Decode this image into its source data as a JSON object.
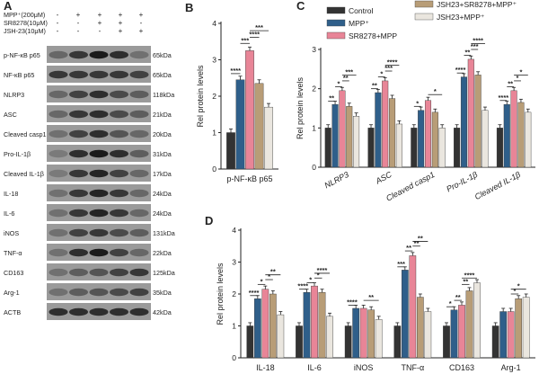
{
  "panel_labels": [
    "A",
    "B",
    "C",
    "D"
  ],
  "colors": {
    "Control": "#333333",
    "MPP+": "#2f5f8a",
    "SR8278+MPP": "#e88597",
    "JSH23+SR8278+MPP+": "#b89d77",
    "JSH23+MPP+": "#eae6df"
  },
  "blot": {
    "treatments": [
      {
        "label": "MPP⁺(200μM)",
        "signs": [
          "-",
          "+",
          "+",
          "+",
          "+"
        ]
      },
      {
        "label": "SR8278(10μM)",
        "signs": [
          "-",
          "-",
          "+",
          "+",
          "-"
        ]
      },
      {
        "label": "JSH-23(10μM)",
        "signs": [
          "-",
          "-",
          "-",
          "+",
          "+"
        ]
      }
    ],
    "bands": [
      {
        "name": "p-NF-κB p65",
        "kda": "65kDa"
      },
      {
        "name": "NF-κB p65",
        "kda": "65kDa"
      },
      {
        "name": "NLRP3",
        "kda": "118kDa"
      },
      {
        "name": "ASC",
        "kda": "21kDa"
      },
      {
        "name": "Cleaved casp1",
        "kda": "20kDa"
      },
      {
        "name": "Pro-IL-1β",
        "kda": "31kDa"
      },
      {
        "name": "Cleaved IL-1β",
        "kda": "17kDa"
      },
      {
        "name": "IL-18",
        "kda": "24kDa"
      },
      {
        "name": "IL-6",
        "kda": "24kDa"
      },
      {
        "name": "iNOS",
        "kda": "131kDa"
      },
      {
        "name": "TNF-α",
        "kda": "22kDa"
      },
      {
        "name": "CD163",
        "kda": "125kDa"
      },
      {
        "name": "Arg-1",
        "kda": "35kDa"
      },
      {
        "name": "ACTB",
        "kda": "42kDa"
      }
    ],
    "intensity": [
      [
        0.55,
        0.8,
        0.95,
        0.85,
        0.5
      ],
      [
        0.8,
        0.8,
        0.8,
        0.8,
        0.75
      ],
      [
        0.55,
        0.75,
        0.85,
        0.7,
        0.6
      ],
      [
        0.55,
        0.8,
        0.85,
        0.7,
        0.6
      ],
      [
        0.5,
        0.75,
        0.85,
        0.65,
        0.55
      ],
      [
        0.45,
        0.85,
        0.95,
        0.85,
        0.6
      ],
      [
        0.45,
        0.8,
        0.9,
        0.75,
        0.55
      ],
      [
        0.5,
        0.8,
        0.9,
        0.8,
        0.55
      ],
      [
        0.5,
        0.8,
        0.9,
        0.8,
        0.55
      ],
      [
        0.5,
        0.75,
        0.8,
        0.7,
        0.6
      ],
      [
        0.5,
        0.85,
        0.95,
        0.75,
        0.55
      ],
      [
        0.5,
        0.6,
        0.65,
        0.75,
        0.8
      ],
      [
        0.5,
        0.6,
        0.65,
        0.7,
        0.75
      ],
      [
        0.85,
        0.85,
        0.85,
        0.85,
        0.85
      ]
    ]
  },
  "legend": {
    "items": [
      {
        "label": "Control",
        "key": "Control"
      },
      {
        "label": "MPP⁺",
        "key": "MPP+"
      },
      {
        "label": "SR8278+MPP",
        "key": "SR8278+MPP"
      },
      {
        "label": "JSH23+SR8278+MPP⁺",
        "key": "JSH23+SR8278+MPP+"
      },
      {
        "label": "JSH23+MPP⁺",
        "key": "JSH23+MPP+"
      }
    ]
  },
  "chart_data": [
    {
      "id": "B",
      "type": "bar",
      "ylabel": "Rel protein levels",
      "ylim": [
        0,
        4
      ],
      "yticks": [
        0,
        1,
        2,
        3,
        4
      ],
      "categories": [
        "p-NF-κB p65"
      ],
      "series": [
        {
          "name": "Control",
          "values": [
            1.0
          ]
        },
        {
          "name": "MPP+",
          "values": [
            2.45
          ]
        },
        {
          "name": "SR8278+MPP",
          "values": [
            3.25
          ]
        },
        {
          "name": "JSH23+SR8278+MPP+",
          "values": [
            2.35
          ]
        },
        {
          "name": "JSH23+MPP+",
          "values": [
            1.7
          ]
        }
      ],
      "annotations": [
        {
          "text": "****",
          "from": 0,
          "to": 1,
          "level": 2.62
        },
        {
          "text": "***",
          "from": 1,
          "to": 2,
          "level": 3.45
        },
        {
          "text": "****",
          "from": 2,
          "to": 3,
          "level": 3.62
        },
        {
          "text": "***",
          "from": 2,
          "to": 4,
          "level": 3.8
        }
      ]
    },
    {
      "id": "C",
      "type": "bar",
      "ylabel": "Rel protein levels",
      "ylim": [
        0,
        3
      ],
      "yticks": [
        0,
        1,
        2,
        3
      ],
      "categories": [
        "NLRP3",
        "ASC",
        "Cleaved casp1",
        "Pro-IL-1β",
        "Cleaved IL-1β"
      ],
      "series": [
        {
          "name": "Control",
          "values": [
            1.0,
            1.0,
            1.0,
            1.0,
            1.0
          ]
        },
        {
          "name": "MPP+",
          "values": [
            1.6,
            1.9,
            1.45,
            2.3,
            1.6
          ]
        },
        {
          "name": "SR8278+MPP",
          "values": [
            1.95,
            2.2,
            1.7,
            2.75,
            1.95
          ]
        },
        {
          "name": "JSH23+SR8278+MPP+",
          "values": [
            1.55,
            1.75,
            1.4,
            2.35,
            1.65
          ]
        },
        {
          "name": "JSH23+MPP+",
          "values": [
            1.3,
            1.1,
            1.0,
            1.45,
            1.4
          ]
        }
      ],
      "annotations": [
        {
          "text": "**",
          "cat": 0,
          "from": 0,
          "to": 1,
          "level": 1.68
        },
        {
          "text": "*",
          "cat": 0,
          "from": 1,
          "to": 2,
          "level": 2.05
        },
        {
          "text": "**",
          "cat": 0,
          "from": 2,
          "to": 3,
          "level": 2.2
        },
        {
          "text": "***",
          "cat": 0,
          "from": 2,
          "to": 4,
          "level": 2.35
        },
        {
          "text": "**",
          "cat": 1,
          "from": 0,
          "to": 1,
          "level": 2.0
        },
        {
          "text": "*",
          "cat": 1,
          "from": 1,
          "to": 2,
          "level": 2.3
        },
        {
          "text": "***",
          "cat": 1,
          "from": 2,
          "to": 3,
          "level": 2.45
        },
        {
          "text": "****",
          "cat": 1,
          "from": 2,
          "to": 4,
          "level": 2.6
        },
        {
          "text": "*",
          "cat": 2,
          "from": 0,
          "to": 1,
          "level": 1.55
        },
        {
          "text": "*",
          "cat": 2,
          "from": 2,
          "to": 4,
          "level": 1.85
        },
        {
          "text": "****",
          "cat": 3,
          "from": 0,
          "to": 1,
          "level": 2.4
        },
        {
          "text": "**",
          "cat": 3,
          "from": 1,
          "to": 2,
          "level": 2.85
        },
        {
          "text": "***",
          "cat": 3,
          "from": 2,
          "to": 3,
          "level": 3.0
        },
        {
          "text": "****",
          "cat": 3,
          "from": 2,
          "to": 4,
          "level": 3.15
        },
        {
          "text": "****",
          "cat": 4,
          "from": 0,
          "to": 1,
          "level": 1.7
        },
        {
          "text": "**",
          "cat": 4,
          "from": 1,
          "to": 2,
          "level": 2.05
        },
        {
          "text": "*",
          "cat": 4,
          "from": 2,
          "to": 3,
          "level": 2.2
        },
        {
          "text": "*",
          "cat": 4,
          "from": 2,
          "to": 4,
          "level": 2.35
        }
      ]
    },
    {
      "id": "D",
      "type": "bar",
      "ylabel": "Rel protein levels",
      "ylim": [
        0,
        4
      ],
      "yticks": [
        0,
        1,
        2,
        3,
        4
      ],
      "categories": [
        "IL-18",
        "IL-6",
        "iNOS",
        "TNF-α",
        "CD163",
        "Arg-1"
      ],
      "series": [
        {
          "name": "Control",
          "values": [
            1.0,
            1.0,
            1.0,
            1.0,
            1.0,
            1.0
          ]
        },
        {
          "name": "MPP+",
          "values": [
            1.85,
            2.05,
            1.55,
            2.75,
            1.5,
            1.45
          ]
        },
        {
          "name": "SR8278+MPP",
          "values": [
            2.15,
            2.25,
            1.55,
            3.2,
            1.65,
            1.45
          ]
        },
        {
          "name": "JSH23+SR8278+MPP+",
          "values": [
            2.0,
            2.05,
            1.5,
            1.9,
            2.1,
            1.85
          ]
        },
        {
          "name": "JSH23+MPP+",
          "values": [
            1.35,
            1.3,
            1.2,
            1.45,
            2.35,
            1.9
          ]
        }
      ],
      "annotations": [
        {
          "text": "****",
          "cat": 0,
          "from": 0,
          "to": 1,
          "level": 1.95
        },
        {
          "text": "*",
          "cat": 0,
          "from": 1,
          "to": 2,
          "level": 2.3
        },
        {
          "text": "*",
          "cat": 0,
          "from": 2,
          "to": 3,
          "level": 2.45
        },
        {
          "text": "**",
          "cat": 0,
          "from": 2,
          "to": 4,
          "level": 2.6
        },
        {
          "text": "****",
          "cat": 1,
          "from": 0,
          "to": 1,
          "level": 2.15
        },
        {
          "text": "*",
          "cat": 1,
          "from": 1,
          "to": 2,
          "level": 2.35
        },
        {
          "text": "*",
          "cat": 1,
          "from": 2,
          "to": 3,
          "level": 2.5
        },
        {
          "text": "****",
          "cat": 1,
          "from": 2,
          "to": 4,
          "level": 2.65
        },
        {
          "text": "****",
          "cat": 2,
          "from": 0,
          "to": 1,
          "level": 1.65
        },
        {
          "text": "**",
          "cat": 2,
          "from": 2,
          "to": 4,
          "level": 1.8
        },
        {
          "text": "***",
          "cat": 3,
          "from": 0,
          "to": 1,
          "level": 2.85
        },
        {
          "text": "**",
          "cat": 3,
          "from": 1,
          "to": 2,
          "level": 3.35
        },
        {
          "text": "**",
          "cat": 3,
          "from": 2,
          "to": 3,
          "level": 3.5
        },
        {
          "text": "**",
          "cat": 3,
          "from": 2,
          "to": 4,
          "level": 3.65
        },
        {
          "text": "*",
          "cat": 4,
          "from": 0,
          "to": 1,
          "level": 1.6
        },
        {
          "text": "**",
          "cat": 4,
          "from": 1,
          "to": 2,
          "level": 1.8
        },
        {
          "text": "**",
          "cat": 4,
          "from": 2,
          "to": 3,
          "level": 2.3
        },
        {
          "text": "****",
          "cat": 4,
          "from": 2,
          "to": 4,
          "level": 2.5
        },
        {
          "text": "*",
          "cat": 5,
          "from": 2,
          "to": 3,
          "level": 2.0
        },
        {
          "text": "*",
          "cat": 5,
          "from": 2,
          "to": 4,
          "level": 2.15
        }
      ]
    }
  ]
}
